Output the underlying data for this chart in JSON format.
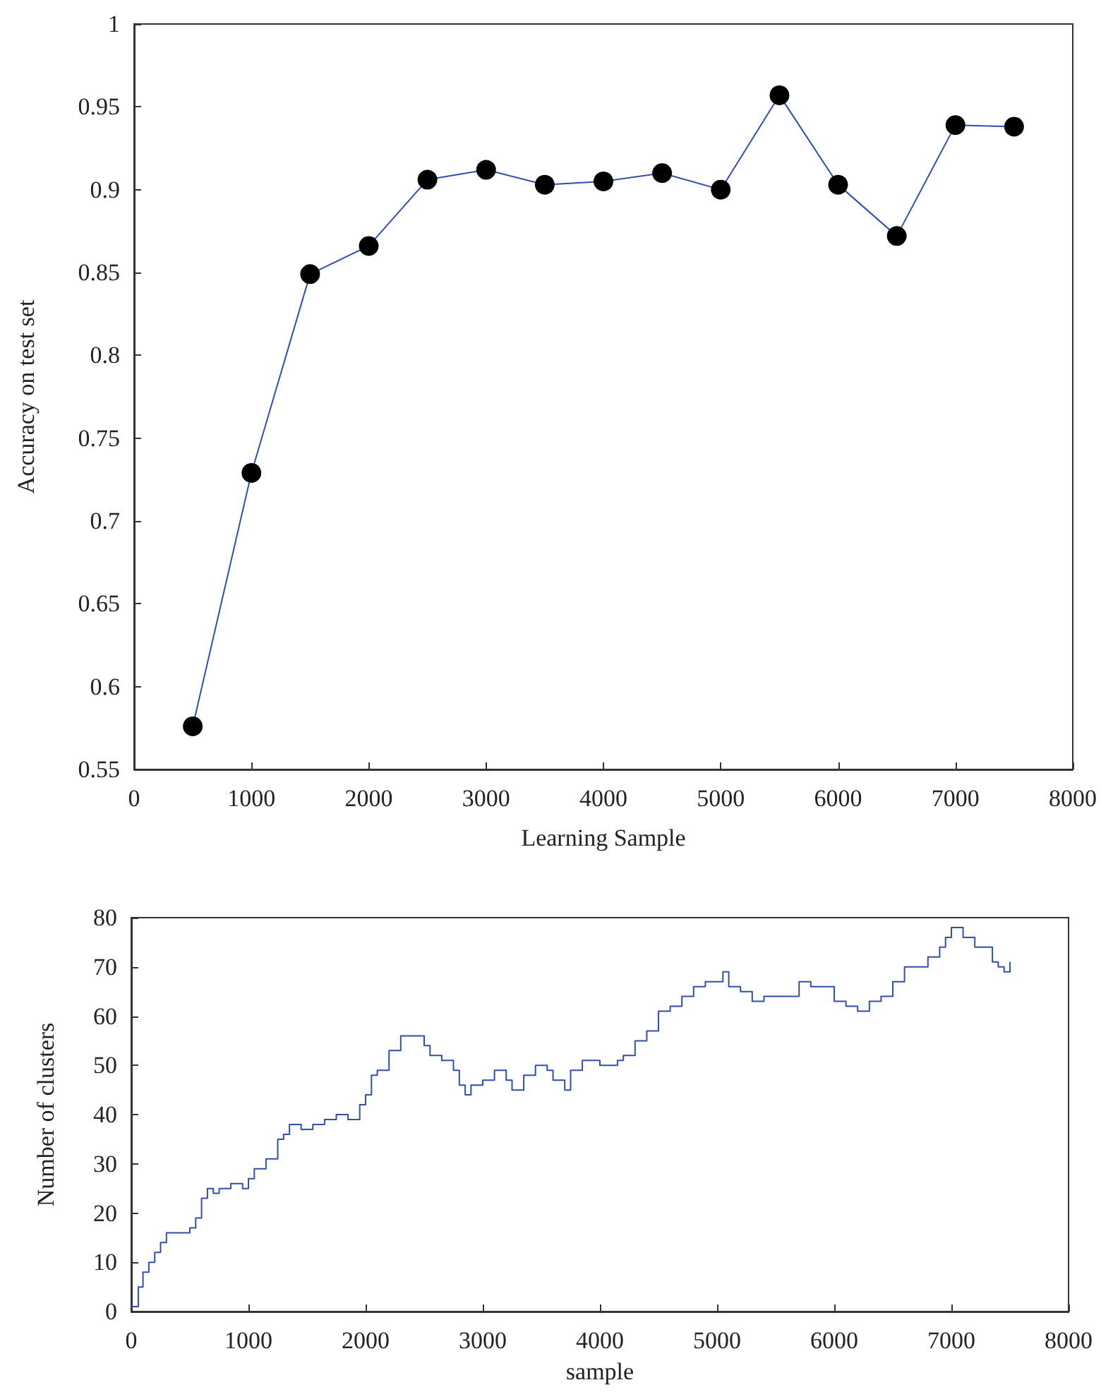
{
  "chart_data": [
    {
      "type": "line",
      "xlabel": "Learning Sample",
      "ylabel": "Accuracy on test set",
      "x": [
        500,
        1000,
        1500,
        2000,
        2500,
        3000,
        3500,
        4000,
        4500,
        5000,
        5500,
        6000,
        6500,
        7000,
        7500
      ],
      "series": [
        {
          "color": "#3050b0",
          "colors": [
            "#000000",
            "#000000",
            "#000000",
            "#000000",
            "#000000",
            "#000000",
            "#000000",
            "#000000",
            "#000000",
            "#000000",
            "#000000",
            "#000000",
            "#000000",
            "#000000",
            "#000000"
          ],
          "values": [
            0.576,
            0.729,
            0.849,
            0.866,
            0.906,
            0.912,
            0.903,
            0.905,
            0.91,
            0.9,
            0.957,
            0.903,
            0.872,
            0.939,
            0.938
          ]
        }
      ],
      "xlim": [
        0,
        8000
      ],
      "xticks": [
        0,
        1000,
        2000,
        3000,
        4000,
        5000,
        6000,
        7000,
        8000
      ],
      "ylim": [
        0.55,
        1
      ],
      "yticks": [
        0.55,
        0.6,
        0.65,
        0.7,
        0.75,
        0.8,
        0.85,
        0.9,
        0.95,
        1
      ],
      "marker": "circle",
      "line_style": "solid",
      "grid": false
    },
    {
      "type": "step",
      "xlabel": "sample",
      "ylabel": "Number of clusters",
      "x": [
        0,
        50,
        60,
        100,
        150,
        200,
        250,
        300,
        450,
        500,
        550,
        600,
        650,
        700,
        750,
        850,
        950,
        1000,
        1050,
        1150,
        1250,
        1300,
        1350,
        1450,
        1550,
        1650,
        1750,
        1850,
        1950,
        2000,
        2050,
        2100,
        2200,
        2300,
        2450,
        2500,
        2550,
        2650,
        2750,
        2800,
        2850,
        2900,
        3000,
        3100,
        3200,
        3250,
        3350,
        3450,
        3550,
        3600,
        3700,
        3750,
        3850,
        4000,
        4150,
        4200,
        4300,
        4400,
        4500,
        4600,
        4700,
        4800,
        4900,
        5000,
        5050,
        5100,
        5200,
        5300,
        5400,
        5500,
        5600,
        5700,
        5800,
        5950,
        6000,
        6100,
        6200,
        6300,
        6400,
        6500,
        6600,
        6700,
        6800,
        6900,
        6950,
        7000,
        7100,
        7200,
        7300,
        7350,
        7400,
        7450,
        7500
      ],
      "series": [
        {
          "color": "#3050b0",
          "values": [
            1,
            1,
            5,
            8,
            10,
            12,
            14,
            16,
            16,
            17,
            19,
            23,
            25,
            24,
            25,
            26,
            25,
            27,
            29,
            31,
            35,
            36,
            38,
            37,
            38,
            39,
            40,
            39,
            42,
            44,
            48,
            49,
            53,
            56,
            56,
            54,
            52,
            51,
            49,
            46,
            44,
            46,
            47,
            49,
            47,
            45,
            48,
            50,
            49,
            47,
            45,
            49,
            51,
            50,
            51,
            52,
            55,
            57,
            61,
            62,
            64,
            66,
            67,
            67,
            69,
            66,
            65,
            63,
            64,
            64,
            64,
            67,
            66,
            66,
            63,
            62,
            61,
            63,
            64,
            67,
            70,
            70,
            72,
            74,
            76,
            78,
            76,
            74,
            74,
            71,
            70,
            69,
            71
          ]
        }
      ],
      "xlim": [
        0,
        8000
      ],
      "xticks": [
        0,
        1000,
        2000,
        3000,
        4000,
        5000,
        6000,
        7000,
        8000
      ],
      "ylim": [
        0,
        80
      ],
      "yticks": [
        0,
        10,
        20,
        30,
        40,
        50,
        60,
        70,
        80
      ],
      "marker": "none",
      "line_style": "solid",
      "grid": false
    }
  ]
}
